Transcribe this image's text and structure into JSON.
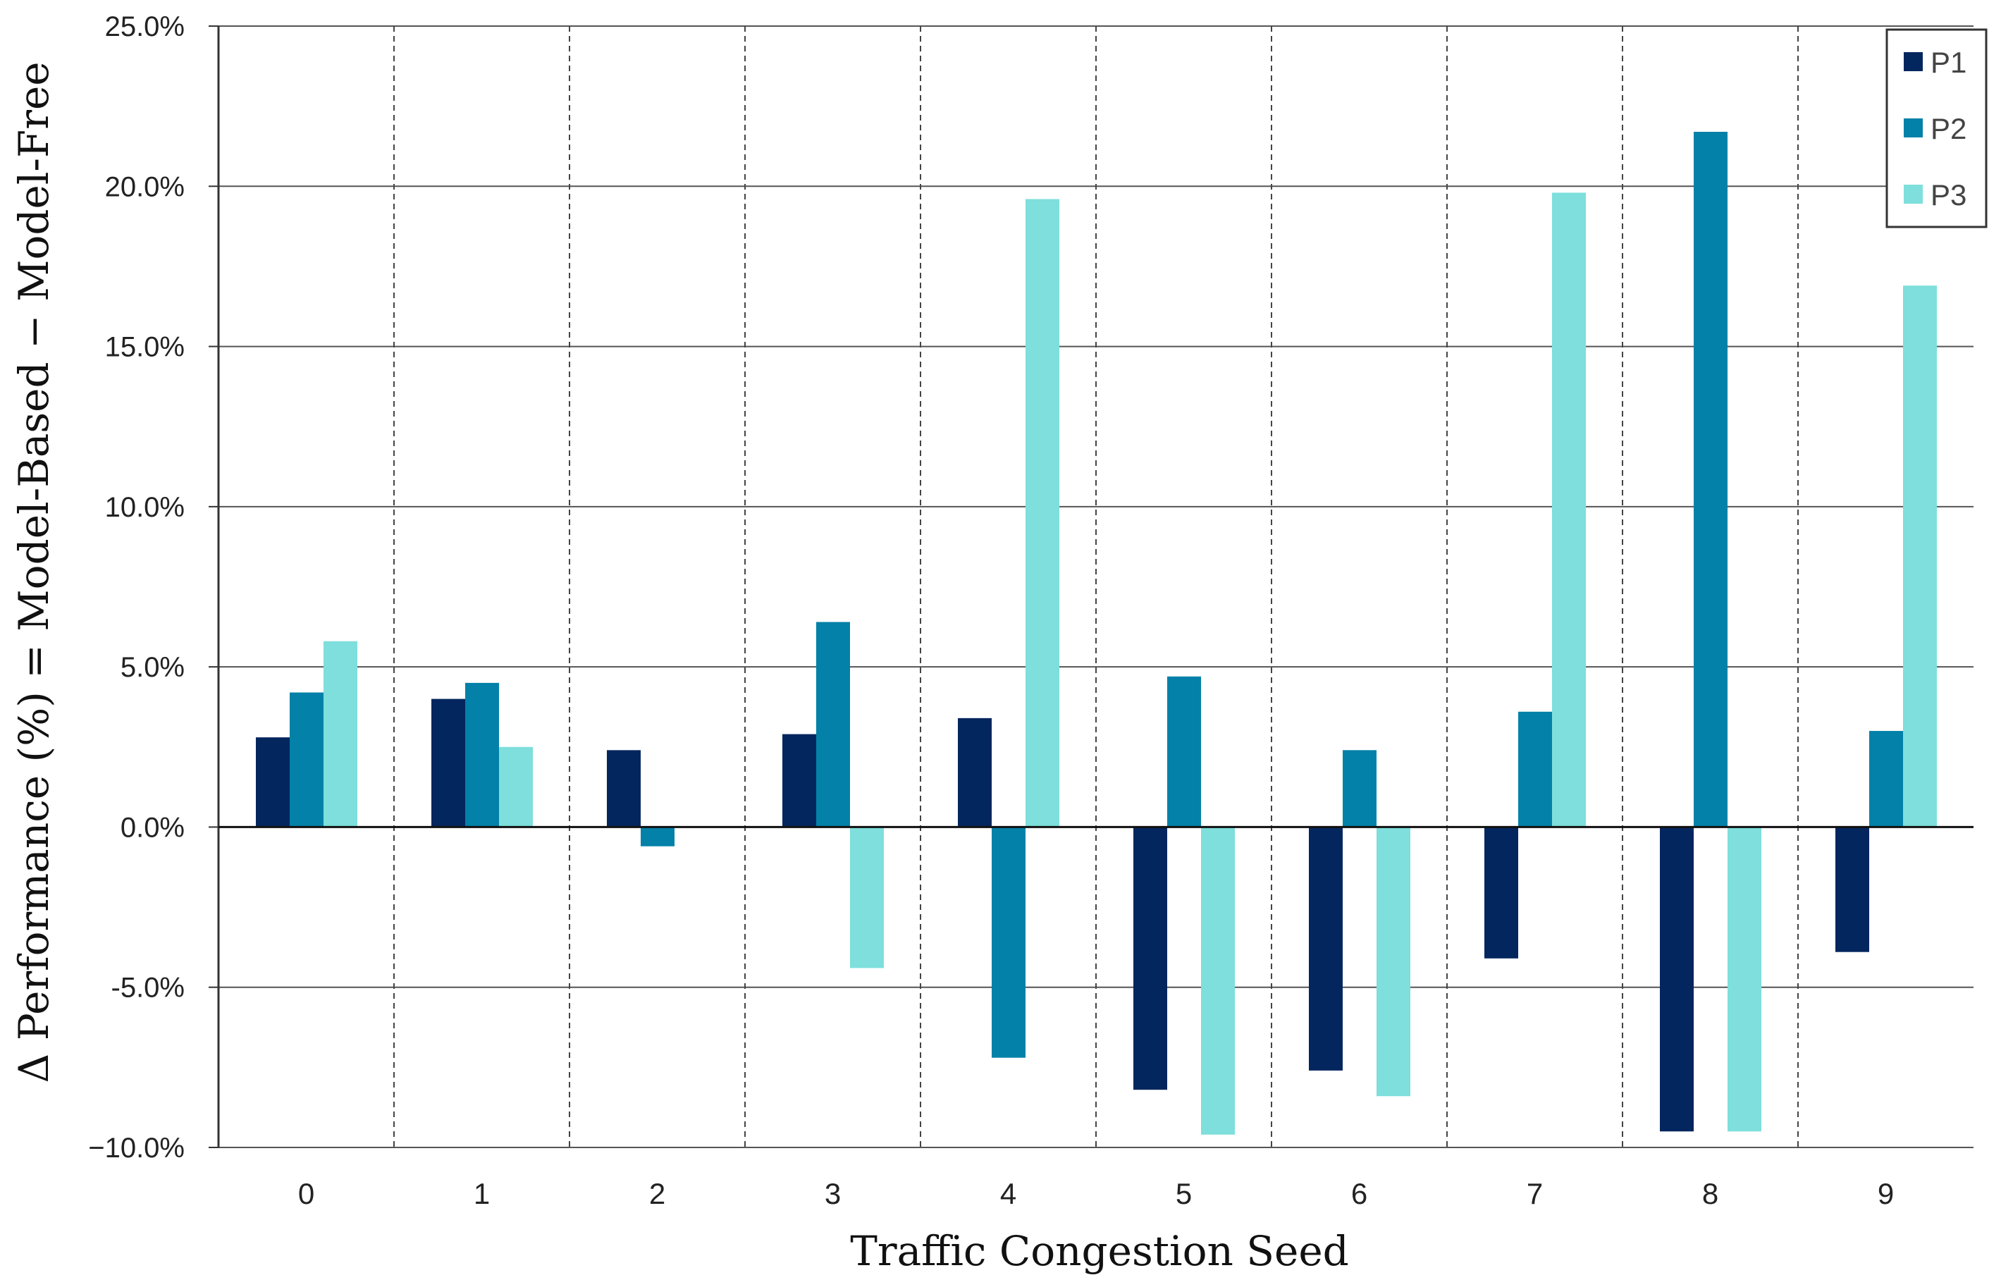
{
  "chart_data": {
    "type": "bar",
    "title": "",
    "xlabel": "Traffic Congestion Seed",
    "ylabel": "Δ Performance (%) = Model-Based − Model-Free",
    "categories": [
      "0",
      "1",
      "2",
      "3",
      "4",
      "5",
      "6",
      "7",
      "8",
      "9"
    ],
    "series": [
      {
        "name": "P1",
        "color": "#04265e",
        "values": [
          2.8,
          4.0,
          2.4,
          2.9,
          3.4,
          -8.2,
          -7.6,
          -4.1,
          -9.5,
          -3.9
        ]
      },
      {
        "name": "P2",
        "color": "#0381a8",
        "values": [
          4.2,
          4.5,
          -0.6,
          6.4,
          -7.2,
          4.7,
          2.4,
          3.6,
          21.7,
          3.0
        ]
      },
      {
        "name": "P3",
        "color": "#7edfdc",
        "values": [
          5.8,
          2.5,
          0.0,
          -4.4,
          19.6,
          -9.6,
          -8.4,
          19.8,
          -9.5,
          16.9
        ]
      }
    ],
    "ylim": [
      -10,
      25
    ],
    "yticks": [
      -10,
      -5,
      0,
      5,
      10,
      15,
      20,
      25
    ],
    "ytick_labels": [
      "−10.0%",
      "-5.0%",
      "0.0%",
      "5.0%",
      "10.0%",
      "15.0%",
      "20.0%",
      "25.0%"
    ],
    "grid": "horizontal solid, vertical dashed category separators",
    "legend_position": "top-right"
  }
}
